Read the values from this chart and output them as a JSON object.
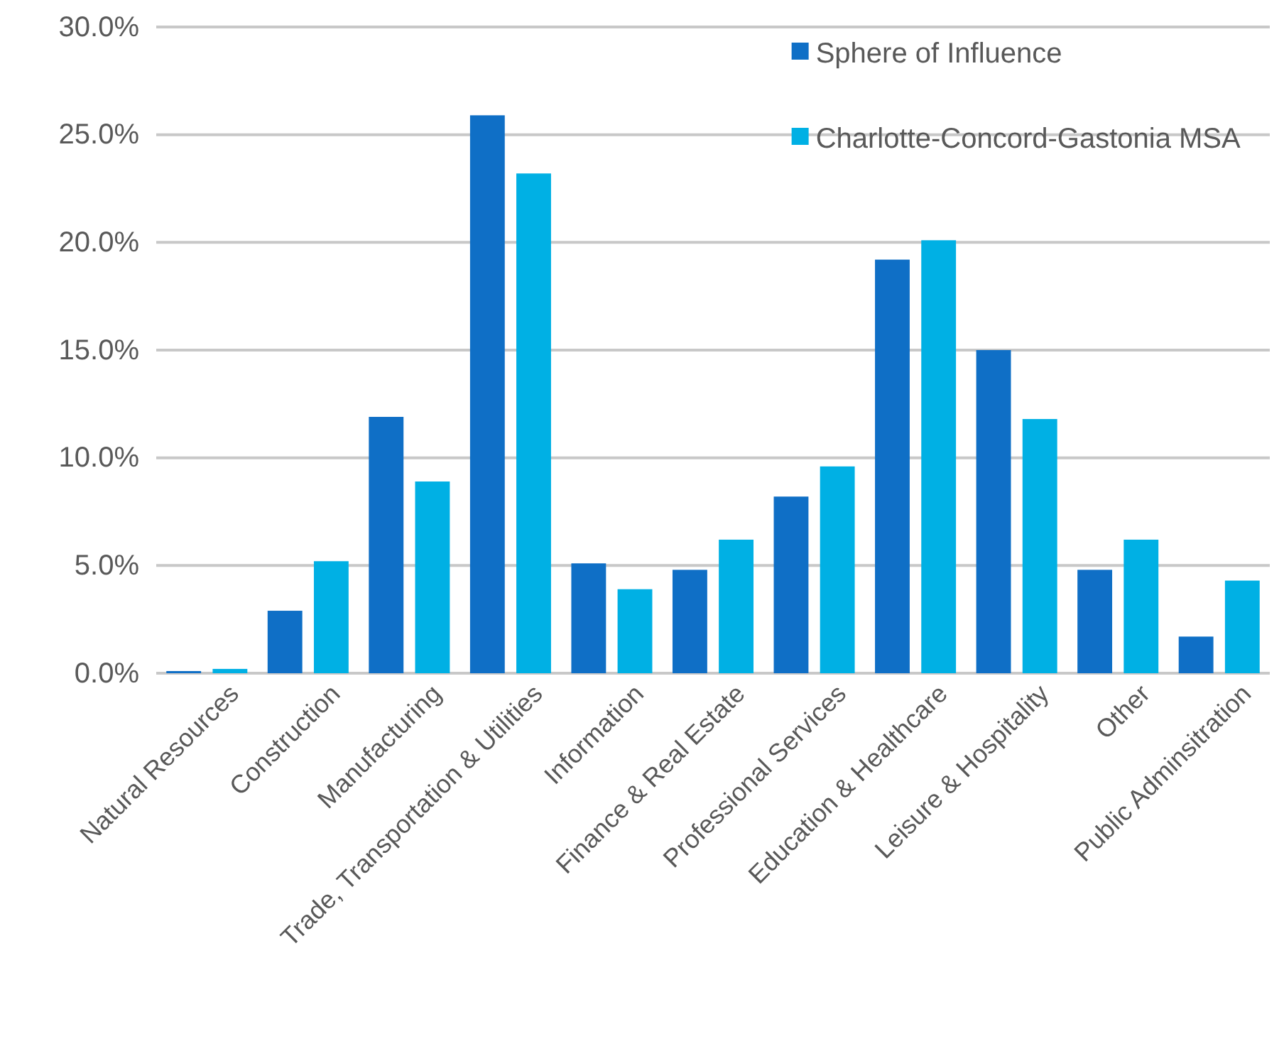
{
  "chart_data": {
    "type": "bar",
    "categories": [
      "Natural Resources",
      "Construction",
      "Manufacturing",
      "Trade, Transportation & Utilities",
      "Information",
      "Finance & Real Estate",
      "Professional Services",
      "Education & Healthcare",
      "Leisure & Hospitality",
      "Other",
      "Public Adminsitration"
    ],
    "series": [
      {
        "name": "Sphere of Influence",
        "color": "#0f6fc6",
        "values": [
          0.1,
          2.9,
          11.9,
          25.9,
          5.1,
          4.8,
          8.2,
          19.2,
          15.0,
          4.8,
          1.7
        ]
      },
      {
        "name": "Charlotte-Concord-Gastonia MSA",
        "color": "#00b0e4",
        "values": [
          0.2,
          5.2,
          8.9,
          23.2,
          3.9,
          6.2,
          9.6,
          20.1,
          11.8,
          6.2,
          4.3
        ]
      }
    ],
    "ylim": [
      0,
      30
    ],
    "yticks": [
      {
        "value": 0,
        "label": "0.0%"
      },
      {
        "value": 5,
        "label": "5.0%"
      },
      {
        "value": 10,
        "label": "10.0%"
      },
      {
        "value": 15,
        "label": "15.0%"
      },
      {
        "value": 20,
        "label": "20.0%"
      },
      {
        "value": 25,
        "label": "25.0%"
      },
      {
        "value": 30,
        "label": "30.0%"
      }
    ],
    "grid": "y",
    "legend": "top right"
  }
}
